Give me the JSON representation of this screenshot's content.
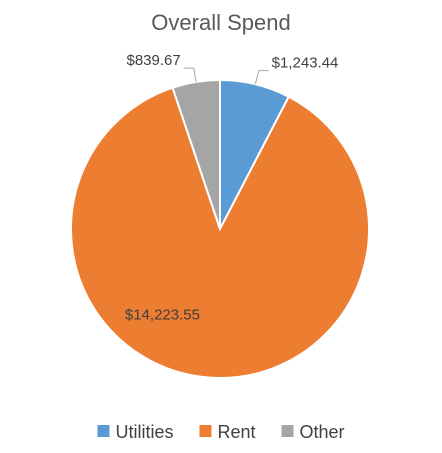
{
  "chart_data": {
    "type": "pie",
    "title": "Overall Spend",
    "categories": [
      "Utilities",
      "Rent",
      "Other"
    ],
    "values": [
      1243.44,
      14223.55,
      839.67
    ],
    "data_labels": [
      "$1,243.44",
      "$14,223.55",
      "$839.67"
    ],
    "colors": [
      "#5b9bd5",
      "#ed7d31",
      "#a5a5a5"
    ],
    "legend_position": "bottom",
    "start_angle": "12 o'clock, clockwise"
  }
}
